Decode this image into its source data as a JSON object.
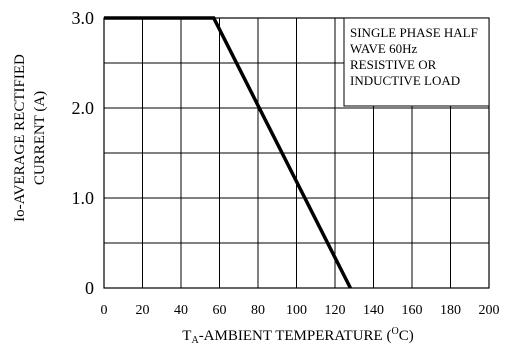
{
  "chart_data": {
    "type": "line",
    "xlabel_main": "T",
    "xlabel_sub": "A",
    "xlabel_rest": "-AMBIENT TEMPERATURE (",
    "xlabel_sup": "O",
    "xlabel_end": "C)",
    "ylabel_line1": "Io-AVERAGE RECTIFIED",
    "ylabel_line2": "CURRENT (A)",
    "xlim": [
      0,
      200
    ],
    "ylim": [
      0,
      3.0
    ],
    "x_ticks": [
      0,
      20,
      40,
      60,
      80,
      100,
      120,
      140,
      160,
      180,
      200
    ],
    "x_tick_labels": [
      "0",
      "20",
      "40",
      "60",
      "80",
      "100",
      "120",
      "140",
      "160",
      "180",
      "200"
    ],
    "y_ticks": [
      0,
      1.0,
      2.0,
      3.0
    ],
    "y_tick_labels": [
      "0",
      "1.0",
      "2.0",
      "3.0"
    ],
    "grid": true,
    "annotation_lines": [
      "SINGLE PHASE HALF",
      "WAVE 60Hz",
      "RESISTIVE OR",
      "INDUCTIVE LOAD"
    ],
    "series": [
      {
        "x": [
          0,
          57,
          128
        ],
        "y": [
          3.0,
          3.0,
          0
        ]
      }
    ]
  }
}
